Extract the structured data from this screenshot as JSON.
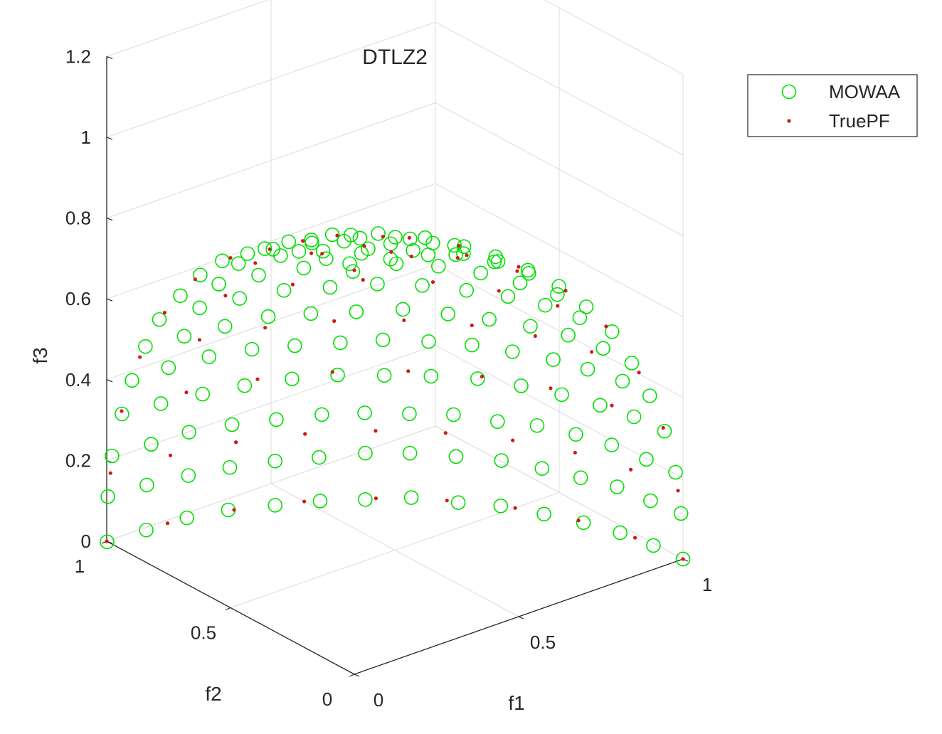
{
  "chart_data": {
    "type": "scatter",
    "projection": "3d",
    "title": "DTLZ2",
    "xlabel": "f1",
    "ylabel": "f2",
    "zlabel": "f3",
    "xlim": [
      0,
      1
    ],
    "ylim": [
      0,
      1
    ],
    "zlim": [
      0,
      1.2
    ],
    "x_ticks": [
      "0",
      "0.5",
      "1"
    ],
    "y_ticks": [
      "0",
      "0.5",
      "1"
    ],
    "z_ticks": [
      "0",
      "0.2",
      "0.4",
      "0.6",
      "0.8",
      "1",
      "1.2"
    ],
    "grid": true,
    "legend_position": "top-right",
    "colors": {
      "MOWAA": "#00e000",
      "TruePF": "#cc1a1a",
      "grid": "#dcdcdc",
      "axis": "#262626"
    },
    "series": [
      {
        "name": "MOWAA",
        "marker": "circle-open",
        "description_of_points": "Approximately uniform set of points on the unit sphere octant f1^2+f2^2+f3^2=1 (f1,f2,f3 >= 0)",
        "spherical_grid": {
          "polar_steps": 14,
          "includes_boundaries": true
        }
      },
      {
        "name": "TruePF",
        "marker": "point",
        "description_of_points": "Reference points on the unit sphere octant f1^2+f2^2+f3^2=1",
        "spherical_grid": {
          "polar_steps": 9,
          "includes_boundaries": true
        }
      }
    ]
  }
}
